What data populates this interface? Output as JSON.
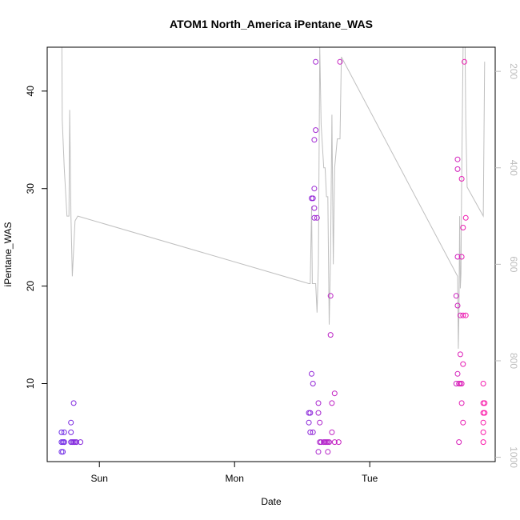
{
  "chart_data": {
    "type": "scatter",
    "title": "ATOM1 North_America iPentane_WAS",
    "xlabel": "Date",
    "ylabel": "iPentane_WAS",
    "x_ticks": [
      {
        "label": "Sun",
        "value": 1.0
      },
      {
        "label": "Mon",
        "value": 2.0
      },
      {
        "label": "Tue",
        "value": 3.0
      }
    ],
    "xlim": [
      0.614,
      3.928
    ],
    "ylim": [
      2.0,
      44.5
    ],
    "y_ticks": [
      10,
      20,
      30,
      40
    ],
    "y2_ticks": [
      200,
      400,
      600,
      800,
      1000
    ],
    "y2lim": [
      1009.0,
      150.0
    ],
    "grid": false,
    "point_colors": {
      "start": "#6a2be8",
      "end": "#ff1aa8"
    },
    "line_color": "#bfbfbf",
    "series": [
      {
        "marker": "open-circle",
        "points": [
          {
            "x": 0.72,
            "y": 5
          },
          {
            "x": 0.72,
            "y": 4
          },
          {
            "x": 0.72,
            "y": 3
          },
          {
            "x": 0.73,
            "y": 4
          },
          {
            "x": 0.73,
            "y": 3
          },
          {
            "x": 0.74,
            "y": 4
          },
          {
            "x": 0.74,
            "y": 5
          },
          {
            "x": 0.74,
            "y": 4
          },
          {
            "x": 0.79,
            "y": 5
          },
          {
            "x": 0.79,
            "y": 6
          },
          {
            "x": 0.79,
            "y": 4
          },
          {
            "x": 0.8,
            "y": 4
          },
          {
            "x": 0.81,
            "y": 8
          },
          {
            "x": 0.81,
            "y": 4
          },
          {
            "x": 0.82,
            "y": 4
          },
          {
            "x": 0.83,
            "y": 4
          },
          {
            "x": 0.86,
            "y": 4
          },
          {
            "x": 2.55,
            "y": 7
          },
          {
            "x": 2.55,
            "y": 6
          },
          {
            "x": 2.56,
            "y": 5
          },
          {
            "x": 2.56,
            "y": 7
          },
          {
            "x": 2.57,
            "y": 29
          },
          {
            "x": 2.57,
            "y": 11
          },
          {
            "x": 2.58,
            "y": 10
          },
          {
            "x": 2.58,
            "y": 5
          },
          {
            "x": 2.58,
            "y": 29
          },
          {
            "x": 2.59,
            "y": 30
          },
          {
            "x": 2.59,
            "y": 27
          },
          {
            "x": 2.59,
            "y": 28
          },
          {
            "x": 2.59,
            "y": 35
          },
          {
            "x": 2.6,
            "y": 36
          },
          {
            "x": 2.6,
            "y": 43
          },
          {
            "x": 2.61,
            "y": 27
          },
          {
            "x": 2.62,
            "y": 7
          },
          {
            "x": 2.62,
            "y": 8
          },
          {
            "x": 2.62,
            "y": 3
          },
          {
            "x": 2.63,
            "y": 4
          },
          {
            "x": 2.63,
            "y": 6
          },
          {
            "x": 2.64,
            "y": 4
          },
          {
            "x": 2.66,
            "y": 4
          },
          {
            "x": 2.67,
            "y": 4
          },
          {
            "x": 2.68,
            "y": 4
          },
          {
            "x": 2.69,
            "y": 4
          },
          {
            "x": 2.69,
            "y": 3
          },
          {
            "x": 2.7,
            "y": 4
          },
          {
            "x": 2.71,
            "y": 15
          },
          {
            "x": 2.71,
            "y": 19
          },
          {
            "x": 2.72,
            "y": 8
          },
          {
            "x": 2.72,
            "y": 5
          },
          {
            "x": 2.74,
            "y": 9
          },
          {
            "x": 2.74,
            "y": 4
          },
          {
            "x": 2.77,
            "y": 4
          },
          {
            "x": 2.78,
            "y": 43
          },
          {
            "x": 3.64,
            "y": 10
          },
          {
            "x": 3.64,
            "y": 19
          },
          {
            "x": 3.65,
            "y": 23
          },
          {
            "x": 3.65,
            "y": 18
          },
          {
            "x": 3.65,
            "y": 32
          },
          {
            "x": 3.65,
            "y": 33
          },
          {
            "x": 3.65,
            "y": 11
          },
          {
            "x": 3.66,
            "y": 10
          },
          {
            "x": 3.66,
            "y": 4
          },
          {
            "x": 3.67,
            "y": 17
          },
          {
            "x": 3.67,
            "y": 10
          },
          {
            "x": 3.67,
            "y": 13
          },
          {
            "x": 3.68,
            "y": 10
          },
          {
            "x": 3.68,
            "y": 23
          },
          {
            "x": 3.68,
            "y": 8
          },
          {
            "x": 3.68,
            "y": 31
          },
          {
            "x": 3.69,
            "y": 12
          },
          {
            "x": 3.69,
            "y": 26
          },
          {
            "x": 3.69,
            "y": 6
          },
          {
            "x": 3.69,
            "y": 17
          },
          {
            "x": 3.7,
            "y": 43
          },
          {
            "x": 3.71,
            "y": 27
          },
          {
            "x": 3.71,
            "y": 17
          },
          {
            "x": 3.84,
            "y": 8
          },
          {
            "x": 3.84,
            "y": 10
          },
          {
            "x": 3.84,
            "y": 7
          },
          {
            "x": 3.84,
            "y": 6
          },
          {
            "x": 3.84,
            "y": 5
          },
          {
            "x": 3.84,
            "y": 4
          },
          {
            "x": 3.85,
            "y": 8
          },
          {
            "x": 3.85,
            "y": 7
          }
        ]
      },
      {
        "name": "",
        "axis": "right",
        "type": "line",
        "points": [
          {
            "x": 0.72,
            "y": 0
          },
          {
            "x": 0.725,
            "y": 300
          },
          {
            "x": 0.74,
            "y": 400
          },
          {
            "x": 0.76,
            "y": 500
          },
          {
            "x": 0.775,
            "y": 500
          },
          {
            "x": 0.78,
            "y": 280
          },
          {
            "x": 0.79,
            "y": 500
          },
          {
            "x": 0.8,
            "y": 625
          },
          {
            "x": 0.82,
            "y": 510
          },
          {
            "x": 0.84,
            "y": 500
          },
          {
            "x": 2.55,
            "y": 640
          },
          {
            "x": 2.56,
            "y": 640
          },
          {
            "x": 2.57,
            "y": 480
          },
          {
            "x": 2.575,
            "y": 640
          },
          {
            "x": 2.6,
            "y": 640
          },
          {
            "x": 2.61,
            "y": 700
          },
          {
            "x": 2.62,
            "y": 600
          },
          {
            "x": 2.63,
            "y": 150
          },
          {
            "x": 2.64,
            "y": 310
          },
          {
            "x": 2.66,
            "y": 400
          },
          {
            "x": 2.67,
            "y": 400
          },
          {
            "x": 2.68,
            "y": 460
          },
          {
            "x": 2.69,
            "y": 460
          },
          {
            "x": 2.7,
            "y": 725
          },
          {
            "x": 2.71,
            "y": 580
          },
          {
            "x": 2.72,
            "y": 290
          },
          {
            "x": 2.73,
            "y": 600
          },
          {
            "x": 2.74,
            "y": 400
          },
          {
            "x": 2.76,
            "y": 340
          },
          {
            "x": 2.78,
            "y": 340
          },
          {
            "x": 2.79,
            "y": 170
          },
          {
            "x": 3.65,
            "y": 625
          },
          {
            "x": 3.655,
            "y": 775
          },
          {
            "x": 3.66,
            "y": 700
          },
          {
            "x": 3.665,
            "y": 500
          },
          {
            "x": 3.67,
            "y": 650
          },
          {
            "x": 3.675,
            "y": 620
          },
          {
            "x": 3.68,
            "y": 420
          },
          {
            "x": 3.69,
            "y": 160
          },
          {
            "x": 3.695,
            "y": 0
          },
          {
            "x": 3.7,
            "y": 0
          },
          {
            "x": 3.71,
            "y": 300
          },
          {
            "x": 3.72,
            "y": 440
          },
          {
            "x": 3.84,
            "y": 500
          },
          {
            "x": 3.85,
            "y": 180
          }
        ]
      }
    ]
  }
}
